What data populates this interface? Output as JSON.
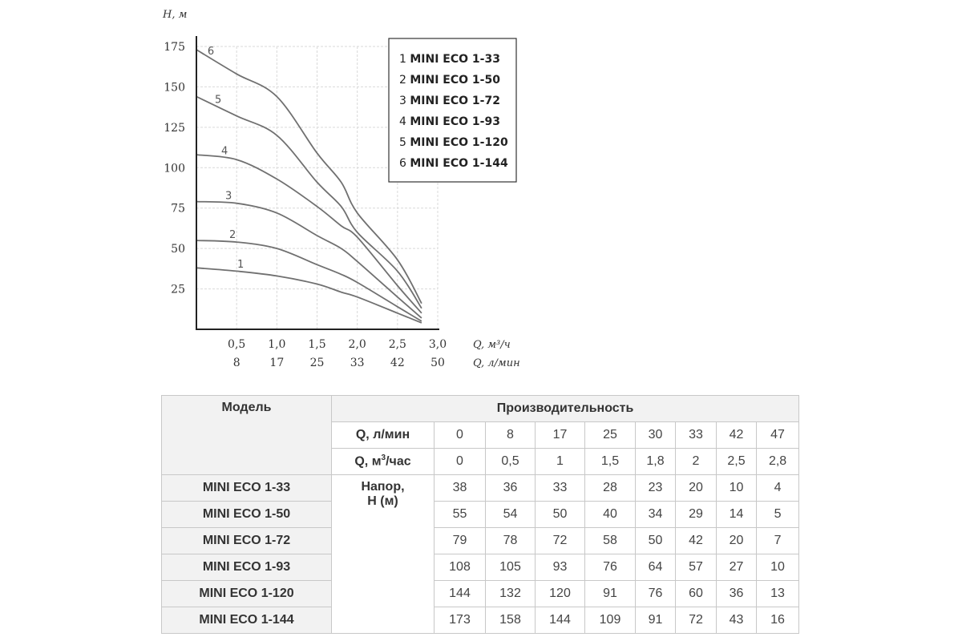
{
  "chart_data": {
    "type": "line",
    "title": "",
    "ylabel": "H, м",
    "xlabel": "Q, м³/ч",
    "xlabel2": "Q, л/мин",
    "ylim": [
      0,
      175
    ],
    "xlim": [
      0,
      3.0
    ],
    "y_ticks": [
      "25",
      "50",
      "75",
      "100",
      "125",
      "150",
      "175"
    ],
    "y_tick_values": [
      25,
      50,
      75,
      100,
      125,
      150,
      175
    ],
    "x_ticks": [
      "0,5",
      "1,0",
      "1,5",
      "2,0",
      "2,5",
      "3,0"
    ],
    "x_tick_values": [
      0.5,
      1.0,
      1.5,
      2.0,
      2.5,
      3.0
    ],
    "x_ticks2": [
      "8",
      "17",
      "25",
      "33",
      "42",
      "50"
    ],
    "grid": true,
    "legend_position": "top-right",
    "x": [
      0,
      0.5,
      1,
      1.5,
      1.8,
      2,
      2.5,
      2.8
    ],
    "series": [
      {
        "id": "1",
        "name": "MINI ECO 1-33",
        "values": [
          38,
          36,
          33,
          28,
          23,
          20,
          10,
          4
        ],
        "label_x": 0.55
      },
      {
        "id": "2",
        "name": "MINI ECO 1-50",
        "values": [
          55,
          54,
          50,
          40,
          34,
          29,
          14,
          5
        ],
        "label_x": 0.45
      },
      {
        "id": "3",
        "name": "MINI ECO 1-72",
        "values": [
          79,
          78,
          72,
          58,
          50,
          42,
          20,
          7
        ],
        "label_x": 0.4
      },
      {
        "id": "4",
        "name": "MINI ECO 1-93",
        "values": [
          108,
          105,
          93,
          76,
          64,
          57,
          27,
          10
        ],
        "label_x": 0.35
      },
      {
        "id": "5",
        "name": "MINI ECO 1-120",
        "values": [
          144,
          132,
          120,
          91,
          76,
          60,
          36,
          13
        ],
        "label_x": 0.27
      },
      {
        "id": "6",
        "name": "MINI ECO 1-144",
        "values": [
          173,
          158,
          144,
          109,
          91,
          72,
          43,
          16
        ],
        "label_x": 0.18
      }
    ]
  },
  "table": {
    "model_header": "Модель",
    "perf_header": "Производительность",
    "q_lmin_label": "Q, л/мин",
    "q_m3_label_pre": "Q, м",
    "q_m3_label_sup": "3",
    "q_m3_label_post": "/час",
    "head_label_line1": "Напор,",
    "head_label_line2": "Н (м)",
    "q_lmin": [
      "0",
      "8",
      "17",
      "25",
      "30",
      "33",
      "42",
      "47"
    ],
    "q_m3": [
      "0",
      "0,5",
      "1",
      "1,5",
      "1,8",
      "2",
      "2,5",
      "2,8"
    ],
    "rows": [
      {
        "model": "MINI ECO 1-33",
        "values": [
          "38",
          "36",
          "33",
          "28",
          "23",
          "20",
          "10",
          "4"
        ]
      },
      {
        "model": "MINI ECO 1-50",
        "values": [
          "55",
          "54",
          "50",
          "40",
          "34",
          "29",
          "14",
          "5"
        ]
      },
      {
        "model": "MINI ECO 1-72",
        "values": [
          "79",
          "78",
          "72",
          "58",
          "50",
          "42",
          "20",
          "7"
        ]
      },
      {
        "model": "MINI ECO 1-93",
        "values": [
          "108",
          "105",
          "93",
          "76",
          "64",
          "57",
          "27",
          "10"
        ]
      },
      {
        "model": "MINI ECO 1-120",
        "values": [
          "144",
          "132",
          "120",
          "91",
          "76",
          "60",
          "36",
          "13"
        ]
      },
      {
        "model": "MINI ECO 1-144",
        "values": [
          "173",
          "158",
          "144",
          "109",
          "91",
          "72",
          "43",
          "16"
        ]
      }
    ]
  }
}
